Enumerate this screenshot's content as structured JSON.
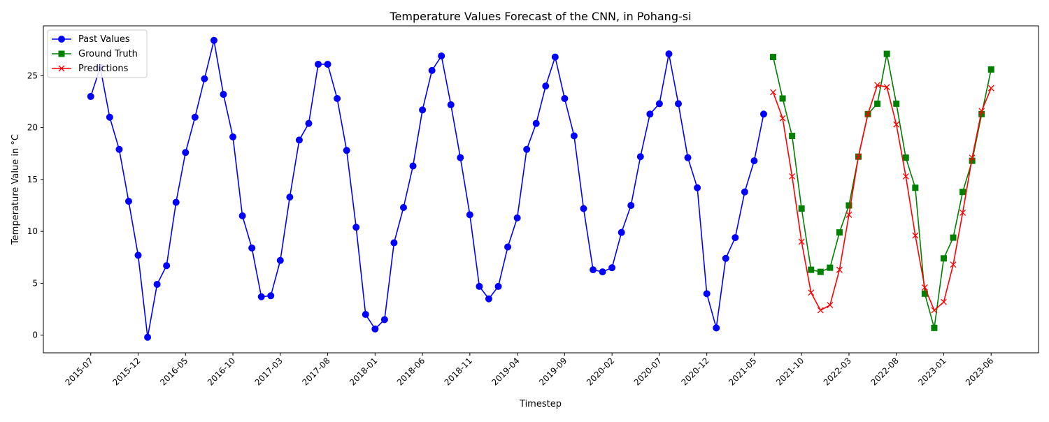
{
  "chart_data": {
    "type": "line",
    "title": "Temperature Values Forecast of the CNN, in Pohang-si",
    "xlabel": "Timestep",
    "ylabel": "Temperature Value in °C",
    "ylim": [
      -1.7,
      29.8
    ],
    "yticks": [
      0,
      5,
      10,
      15,
      20,
      25
    ],
    "x_range": [
      "2015-02",
      "2023-11"
    ],
    "xticks": [
      "2015-07",
      "2015-12",
      "2016-05",
      "2016-10",
      "2017-03",
      "2017-08",
      "2018-01",
      "2018-06",
      "2018-11",
      "2019-04",
      "2019-09",
      "2020-02",
      "2020-07",
      "2020-12",
      "2021-05",
      "2021-10",
      "2022-03",
      "2022-08",
      "2023-01",
      "2023-06"
    ],
    "grid": false,
    "legend_position": "top-left",
    "colors": {
      "past": "#0000ff",
      "ground_truth": "#008000",
      "predictions": "#ff0000"
    },
    "series": [
      {
        "name": "Past Values",
        "key": "past",
        "marker": "circle",
        "x": [
          "2015-07",
          "2015-08",
          "2015-09",
          "2015-10",
          "2015-11",
          "2015-12",
          "2016-01",
          "2016-02",
          "2016-03",
          "2016-04",
          "2016-05",
          "2016-06",
          "2016-07",
          "2016-08",
          "2016-09",
          "2016-10",
          "2016-11",
          "2016-12",
          "2017-01",
          "2017-02",
          "2017-03",
          "2017-04",
          "2017-05",
          "2017-06",
          "2017-07",
          "2017-08",
          "2017-09",
          "2017-10",
          "2017-11",
          "2017-12",
          "2018-01",
          "2018-02",
          "2018-03",
          "2018-04",
          "2018-05",
          "2018-06",
          "2018-07",
          "2018-08",
          "2018-09",
          "2018-10",
          "2018-11",
          "2018-12",
          "2019-01",
          "2019-02",
          "2019-03",
          "2019-04",
          "2019-05",
          "2019-06",
          "2019-07",
          "2019-08",
          "2019-09",
          "2019-10",
          "2019-11",
          "2019-12",
          "2020-01",
          "2020-02",
          "2020-03",
          "2020-04",
          "2020-05",
          "2020-06",
          "2020-07",
          "2020-08",
          "2020-09",
          "2020-10",
          "2020-11",
          "2020-12",
          "2021-01",
          "2021-02",
          "2021-03",
          "2021-04",
          "2021-05",
          "2021-06"
        ],
        "values": [
          23.0,
          25.8,
          21.0,
          17.9,
          12.9,
          7.7,
          -0.2,
          4.9,
          6.7,
          12.8,
          17.6,
          21.0,
          24.7,
          28.4,
          23.2,
          19.1,
          11.5,
          8.4,
          3.7,
          3.8,
          7.2,
          13.3,
          18.8,
          20.4,
          26.1,
          26.1,
          22.8,
          17.8,
          10.4,
          2.0,
          0.6,
          1.5,
          8.9,
          12.3,
          16.3,
          21.7,
          25.5,
          26.9,
          22.2,
          17.1,
          11.6,
          4.7,
          3.5,
          4.7,
          8.5,
          11.3,
          17.9,
          20.4,
          24.0,
          26.8,
          22.8,
          19.2,
          12.2,
          6.3,
          6.1,
          6.5,
          9.9,
          12.5,
          17.2,
          21.3,
          22.3,
          27.1,
          22.3,
          17.1,
          14.2,
          4.0,
          0.7,
          7.4,
          9.4,
          13.8,
          16.8,
          21.3
        ]
      },
      {
        "name": "Ground Truth",
        "key": "ground_truth",
        "marker": "square",
        "x": [
          "2021-07",
          "2021-08",
          "2021-09",
          "2021-10",
          "2021-11",
          "2021-12",
          "2022-01",
          "2022-02",
          "2022-03",
          "2022-04",
          "2022-05",
          "2022-06",
          "2022-07",
          "2022-08",
          "2022-09",
          "2022-10",
          "2022-11",
          "2022-12",
          "2023-01",
          "2023-02",
          "2023-03",
          "2023-04",
          "2023-05",
          "2023-06"
        ],
        "values": [
          26.8,
          22.8,
          19.2,
          12.2,
          6.3,
          6.1,
          6.5,
          9.9,
          12.5,
          17.2,
          21.3,
          22.3,
          27.1,
          22.3,
          17.1,
          14.2,
          4.0,
          0.7,
          7.4,
          9.4,
          13.8,
          16.8,
          21.3,
          25.6
        ]
      },
      {
        "name": "Predictions",
        "key": "predictions",
        "marker": "x",
        "x": [
          "2021-07",
          "2021-08",
          "2021-09",
          "2021-10",
          "2021-11",
          "2021-12",
          "2022-01",
          "2022-02",
          "2022-03",
          "2022-04",
          "2022-05",
          "2022-06",
          "2022-07",
          "2022-08",
          "2022-09",
          "2022-10",
          "2022-11",
          "2022-12",
          "2023-01",
          "2023-02",
          "2023-03",
          "2023-04",
          "2023-05",
          "2023-06"
        ],
        "values": [
          23.4,
          20.9,
          15.3,
          9.0,
          4.1,
          2.4,
          2.9,
          6.3,
          11.6,
          17.2,
          21.3,
          24.1,
          23.9,
          20.3,
          15.3,
          9.6,
          4.6,
          2.4,
          3.2,
          6.8,
          11.8,
          17.1,
          21.6,
          23.8
        ]
      }
    ]
  }
}
